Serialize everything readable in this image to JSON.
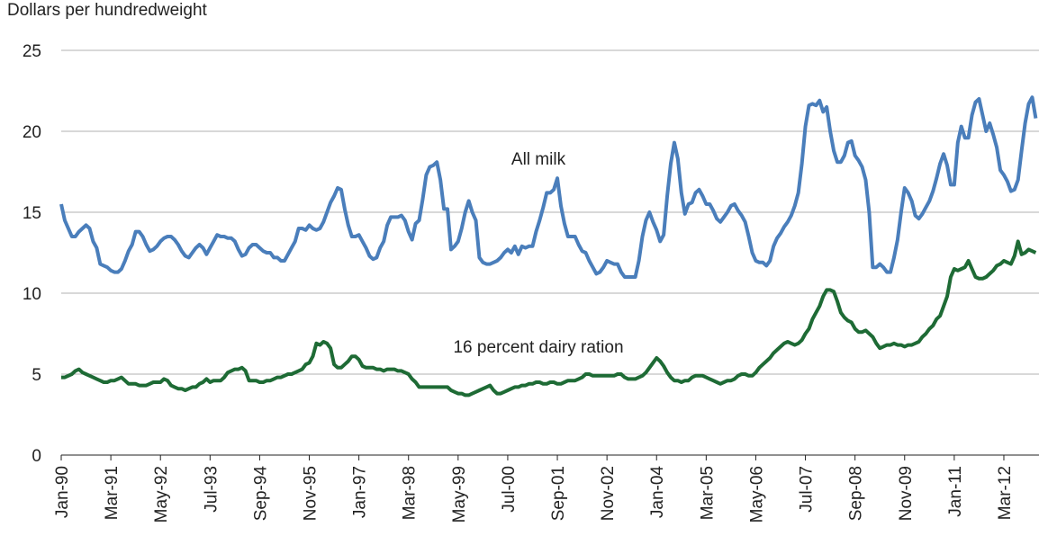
{
  "chart_data": {
    "type": "line",
    "y_label": "Dollars per hundredweight",
    "categories": [
      "Jan-90",
      null,
      null,
      null,
      null,
      null,
      null,
      null,
      null,
      null,
      null,
      null,
      null,
      null,
      "Mar-91",
      null,
      null,
      null,
      null,
      null,
      null,
      null,
      null,
      null,
      null,
      null,
      null,
      null,
      "May-92",
      null,
      null,
      null,
      null,
      null,
      null,
      null,
      null,
      null,
      null,
      null,
      null,
      null,
      "Jul-93",
      null,
      null,
      null,
      null,
      null,
      null,
      null,
      null,
      null,
      null,
      null,
      null,
      null,
      "Sep-94",
      null,
      null,
      null,
      null,
      null,
      null,
      null,
      null,
      null,
      null,
      null,
      null,
      null,
      "Nov-95",
      null,
      null,
      null,
      null,
      null,
      null,
      null,
      null,
      null,
      null,
      null,
      null,
      null,
      "Jan-97",
      null,
      null,
      null,
      null,
      null,
      null,
      null,
      null,
      null,
      null,
      null,
      null,
      null,
      "Mar-98",
      null,
      null,
      null,
      null,
      null,
      null,
      null,
      null,
      null,
      null,
      null,
      null,
      null,
      "May-99",
      null,
      null,
      null,
      null,
      null,
      null,
      null,
      null,
      null,
      null,
      null,
      null,
      null,
      "Jul-00",
      null,
      null,
      null,
      null,
      null,
      null,
      null,
      null,
      null,
      null,
      null,
      null,
      null,
      "Sep-01",
      null,
      null,
      null,
      null,
      null,
      null,
      null,
      null,
      null,
      null,
      null,
      null,
      null,
      "Nov-02",
      null,
      null,
      null,
      null,
      null,
      null,
      null,
      null,
      null,
      null,
      null,
      null,
      null,
      "Jan-04",
      null,
      null,
      null,
      null,
      null,
      null,
      null,
      null,
      null,
      null,
      null,
      null,
      null,
      "Mar-05",
      null,
      null,
      null,
      null,
      null,
      null,
      null,
      null,
      null,
      null,
      null,
      null,
      null,
      "May-06",
      null,
      null,
      null,
      null,
      null,
      null,
      null,
      null,
      null,
      null,
      null,
      null,
      null,
      "Jul-07",
      null,
      null,
      null,
      null,
      null,
      null,
      null,
      null,
      null,
      null,
      null,
      null,
      null,
      "Sep-08",
      null,
      null,
      null,
      null,
      null,
      null,
      null,
      null,
      null,
      null,
      null,
      null,
      null,
      "Nov-09",
      null,
      null,
      null,
      null,
      null,
      null,
      null,
      null,
      null,
      null,
      null,
      null,
      null,
      "Jan-11",
      null,
      null,
      null,
      null,
      null,
      null,
      null,
      null,
      null,
      null,
      null,
      null,
      null,
      "Mar-12",
      null,
      null,
      null,
      null,
      null,
      null,
      null,
      null,
      null
    ],
    "series": [
      {
        "name": "All milk",
        "color": "#4a7ebb",
        "values": [
          15.5,
          14.5,
          14.0,
          13.5,
          13.5,
          13.8,
          14.0,
          14.2,
          14.0,
          13.2,
          12.8,
          11.8,
          11.7,
          11.6,
          11.4,
          11.3,
          11.3,
          11.5,
          12.0,
          12.6,
          13.0,
          13.8,
          13.8,
          13.5,
          13.0,
          12.6,
          12.7,
          12.9,
          13.2,
          13.4,
          13.5,
          13.5,
          13.3,
          13.0,
          12.6,
          12.3,
          12.2,
          12.5,
          12.8,
          13.0,
          12.8,
          12.4,
          12.8,
          13.2,
          13.6,
          13.5,
          13.5,
          13.4,
          13.4,
          13.2,
          12.7,
          12.3,
          12.4,
          12.8,
          13.0,
          13.0,
          12.8,
          12.6,
          12.5,
          12.5,
          12.2,
          12.2,
          12.0,
          12.0,
          12.4,
          12.8,
          13.2,
          14.0,
          14.0,
          13.9,
          14.2,
          14.0,
          13.9,
          14.0,
          14.4,
          15.0,
          15.6,
          16.0,
          16.5,
          16.4,
          15.2,
          14.2,
          13.5,
          13.5,
          13.6,
          13.2,
          12.8,
          12.3,
          12.1,
          12.2,
          12.8,
          13.2,
          14.2,
          14.7,
          14.7,
          14.7,
          14.8,
          14.5,
          13.8,
          13.3,
          14.3,
          14.5,
          15.8,
          17.3,
          17.8,
          17.9,
          18.1,
          17.0,
          15.2,
          15.2,
          12.7,
          12.9,
          13.2,
          14.0,
          15.0,
          15.7,
          15.0,
          14.5,
          12.2,
          11.9,
          11.8,
          11.8,
          11.9,
          12.0,
          12.2,
          12.5,
          12.7,
          12.5,
          12.9,
          12.4,
          12.9,
          12.8,
          12.9,
          12.9,
          13.8,
          14.5,
          15.3,
          16.2,
          16.2,
          16.4,
          17.1,
          15.4,
          14.3,
          13.5,
          13.5,
          13.5,
          13.0,
          12.6,
          12.5,
          12.0,
          11.6,
          11.2,
          11.3,
          11.6,
          12.0,
          11.9,
          11.8,
          11.8,
          11.3,
          11.0,
          11.0,
          11.0,
          11.0,
          12.0,
          13.5,
          14.5,
          15.0,
          14.4,
          13.9,
          13.2,
          13.6,
          16.0,
          18.0,
          19.3,
          18.3,
          16.2,
          14.9,
          15.5,
          15.6,
          16.2,
          16.4,
          16.0,
          15.5,
          15.5,
          15.1,
          14.6,
          14.4,
          14.7,
          15.0,
          15.4,
          15.5,
          15.1,
          14.8,
          14.4,
          13.5,
          12.5,
          12.0,
          11.9,
          11.9,
          11.7,
          12.0,
          12.9,
          13.4,
          13.7,
          14.1,
          14.4,
          14.8,
          15.4,
          16.2,
          18.0,
          20.3,
          21.6,
          21.7,
          21.6,
          21.9,
          21.2,
          21.5,
          20.0,
          18.8,
          18.1,
          18.1,
          18.5,
          19.3,
          19.4,
          18.5,
          18.2,
          17.8,
          17.0,
          15.0,
          11.6,
          11.6,
          11.8,
          11.6,
          11.3,
          11.3,
          12.2,
          13.3,
          15.0,
          16.5,
          16.2,
          15.7,
          14.8,
          14.6,
          14.9,
          15.3,
          15.7,
          16.3,
          17.1,
          18.0,
          18.6,
          17.9,
          16.7,
          16.7,
          19.3,
          20.3,
          19.6,
          19.6,
          21.0,
          21.8,
          22.0,
          21.0,
          20.0,
          20.5,
          19.8,
          19.0,
          17.6,
          17.3,
          16.9,
          16.3,
          16.4,
          17.0,
          18.8,
          20.5,
          21.7,
          22.1,
          20.8
        ]
      },
      {
        "name": "16 percent dairy ration",
        "color": "#1e6b35",
        "values": [
          4.8,
          4.8,
          4.9,
          5.0,
          5.2,
          5.3,
          5.1,
          5.0,
          4.9,
          4.8,
          4.7,
          4.6,
          4.5,
          4.5,
          4.6,
          4.6,
          4.7,
          4.8,
          4.6,
          4.4,
          4.4,
          4.4,
          4.3,
          4.3,
          4.3,
          4.4,
          4.5,
          4.5,
          4.5,
          4.7,
          4.6,
          4.3,
          4.2,
          4.1,
          4.1,
          4.0,
          4.1,
          4.2,
          4.2,
          4.4,
          4.5,
          4.7,
          4.5,
          4.6,
          4.6,
          4.6,
          4.8,
          5.1,
          5.2,
          5.3,
          5.3,
          5.4,
          5.2,
          4.6,
          4.6,
          4.6,
          4.5,
          4.5,
          4.6,
          4.6,
          4.7,
          4.8,
          4.8,
          4.9,
          5.0,
          5.0,
          5.1,
          5.2,
          5.3,
          5.6,
          5.7,
          6.1,
          6.9,
          6.8,
          7.0,
          6.9,
          6.6,
          5.6,
          5.4,
          5.4,
          5.6,
          5.8,
          6.1,
          6.1,
          5.9,
          5.5,
          5.4,
          5.4,
          5.4,
          5.3,
          5.3,
          5.2,
          5.3,
          5.3,
          5.3,
          5.2,
          5.2,
          5.1,
          5.0,
          4.7,
          4.5,
          4.2,
          4.2,
          4.2,
          4.2,
          4.2,
          4.2,
          4.2,
          4.2,
          4.2,
          4.0,
          3.9,
          3.8,
          3.8,
          3.7,
          3.7,
          3.8,
          3.9,
          4.0,
          4.1,
          4.2,
          4.3,
          4.0,
          3.8,
          3.8,
          3.9,
          4.0,
          4.1,
          4.2,
          4.2,
          4.3,
          4.3,
          4.4,
          4.4,
          4.5,
          4.5,
          4.4,
          4.4,
          4.5,
          4.5,
          4.4,
          4.4,
          4.5,
          4.6,
          4.6,
          4.6,
          4.7,
          4.8,
          5.0,
          5.0,
          4.9,
          4.9,
          4.9,
          4.9,
          4.9,
          4.9,
          4.9,
          5.0,
          5.0,
          4.8,
          4.7,
          4.7,
          4.7,
          4.8,
          4.9,
          5.1,
          5.4,
          5.7,
          6.0,
          5.8,
          5.5,
          5.1,
          4.8,
          4.6,
          4.6,
          4.5,
          4.6,
          4.6,
          4.8,
          4.9,
          4.9,
          4.9,
          4.8,
          4.7,
          4.6,
          4.5,
          4.4,
          4.5,
          4.6,
          4.6,
          4.7,
          4.9,
          5.0,
          5.0,
          4.9,
          4.9,
          5.1,
          5.4,
          5.6,
          5.8,
          6.0,
          6.3,
          6.5,
          6.7,
          6.9,
          7.0,
          6.9,
          6.8,
          6.9,
          7.1,
          7.5,
          7.8,
          8.4,
          8.8,
          9.2,
          9.8,
          10.2,
          10.2,
          10.1,
          9.5,
          8.8,
          8.5,
          8.3,
          8.2,
          7.8,
          7.6,
          7.6,
          7.7,
          7.5,
          7.3,
          6.9,
          6.6,
          6.7,
          6.8,
          6.8,
          6.9,
          6.8,
          6.8,
          6.7,
          6.8,
          6.8,
          6.9,
          7.0,
          7.3,
          7.5,
          7.8,
          8.0,
          8.4,
          8.6,
          9.2,
          9.8,
          11.0,
          11.5,
          11.4,
          11.5,
          11.6,
          12.0,
          11.5,
          11.0,
          10.9,
          10.9,
          11.0,
          11.2,
          11.4,
          11.7,
          11.8,
          12.0,
          11.9,
          11.8,
          12.3,
          13.2,
          12.4,
          12.5,
          12.7,
          12.6,
          12.5
        ]
      }
    ],
    "ylim": [
      0,
      25
    ],
    "yticks": [
      0,
      5,
      10,
      15,
      20,
      25
    ],
    "grid": true
  }
}
